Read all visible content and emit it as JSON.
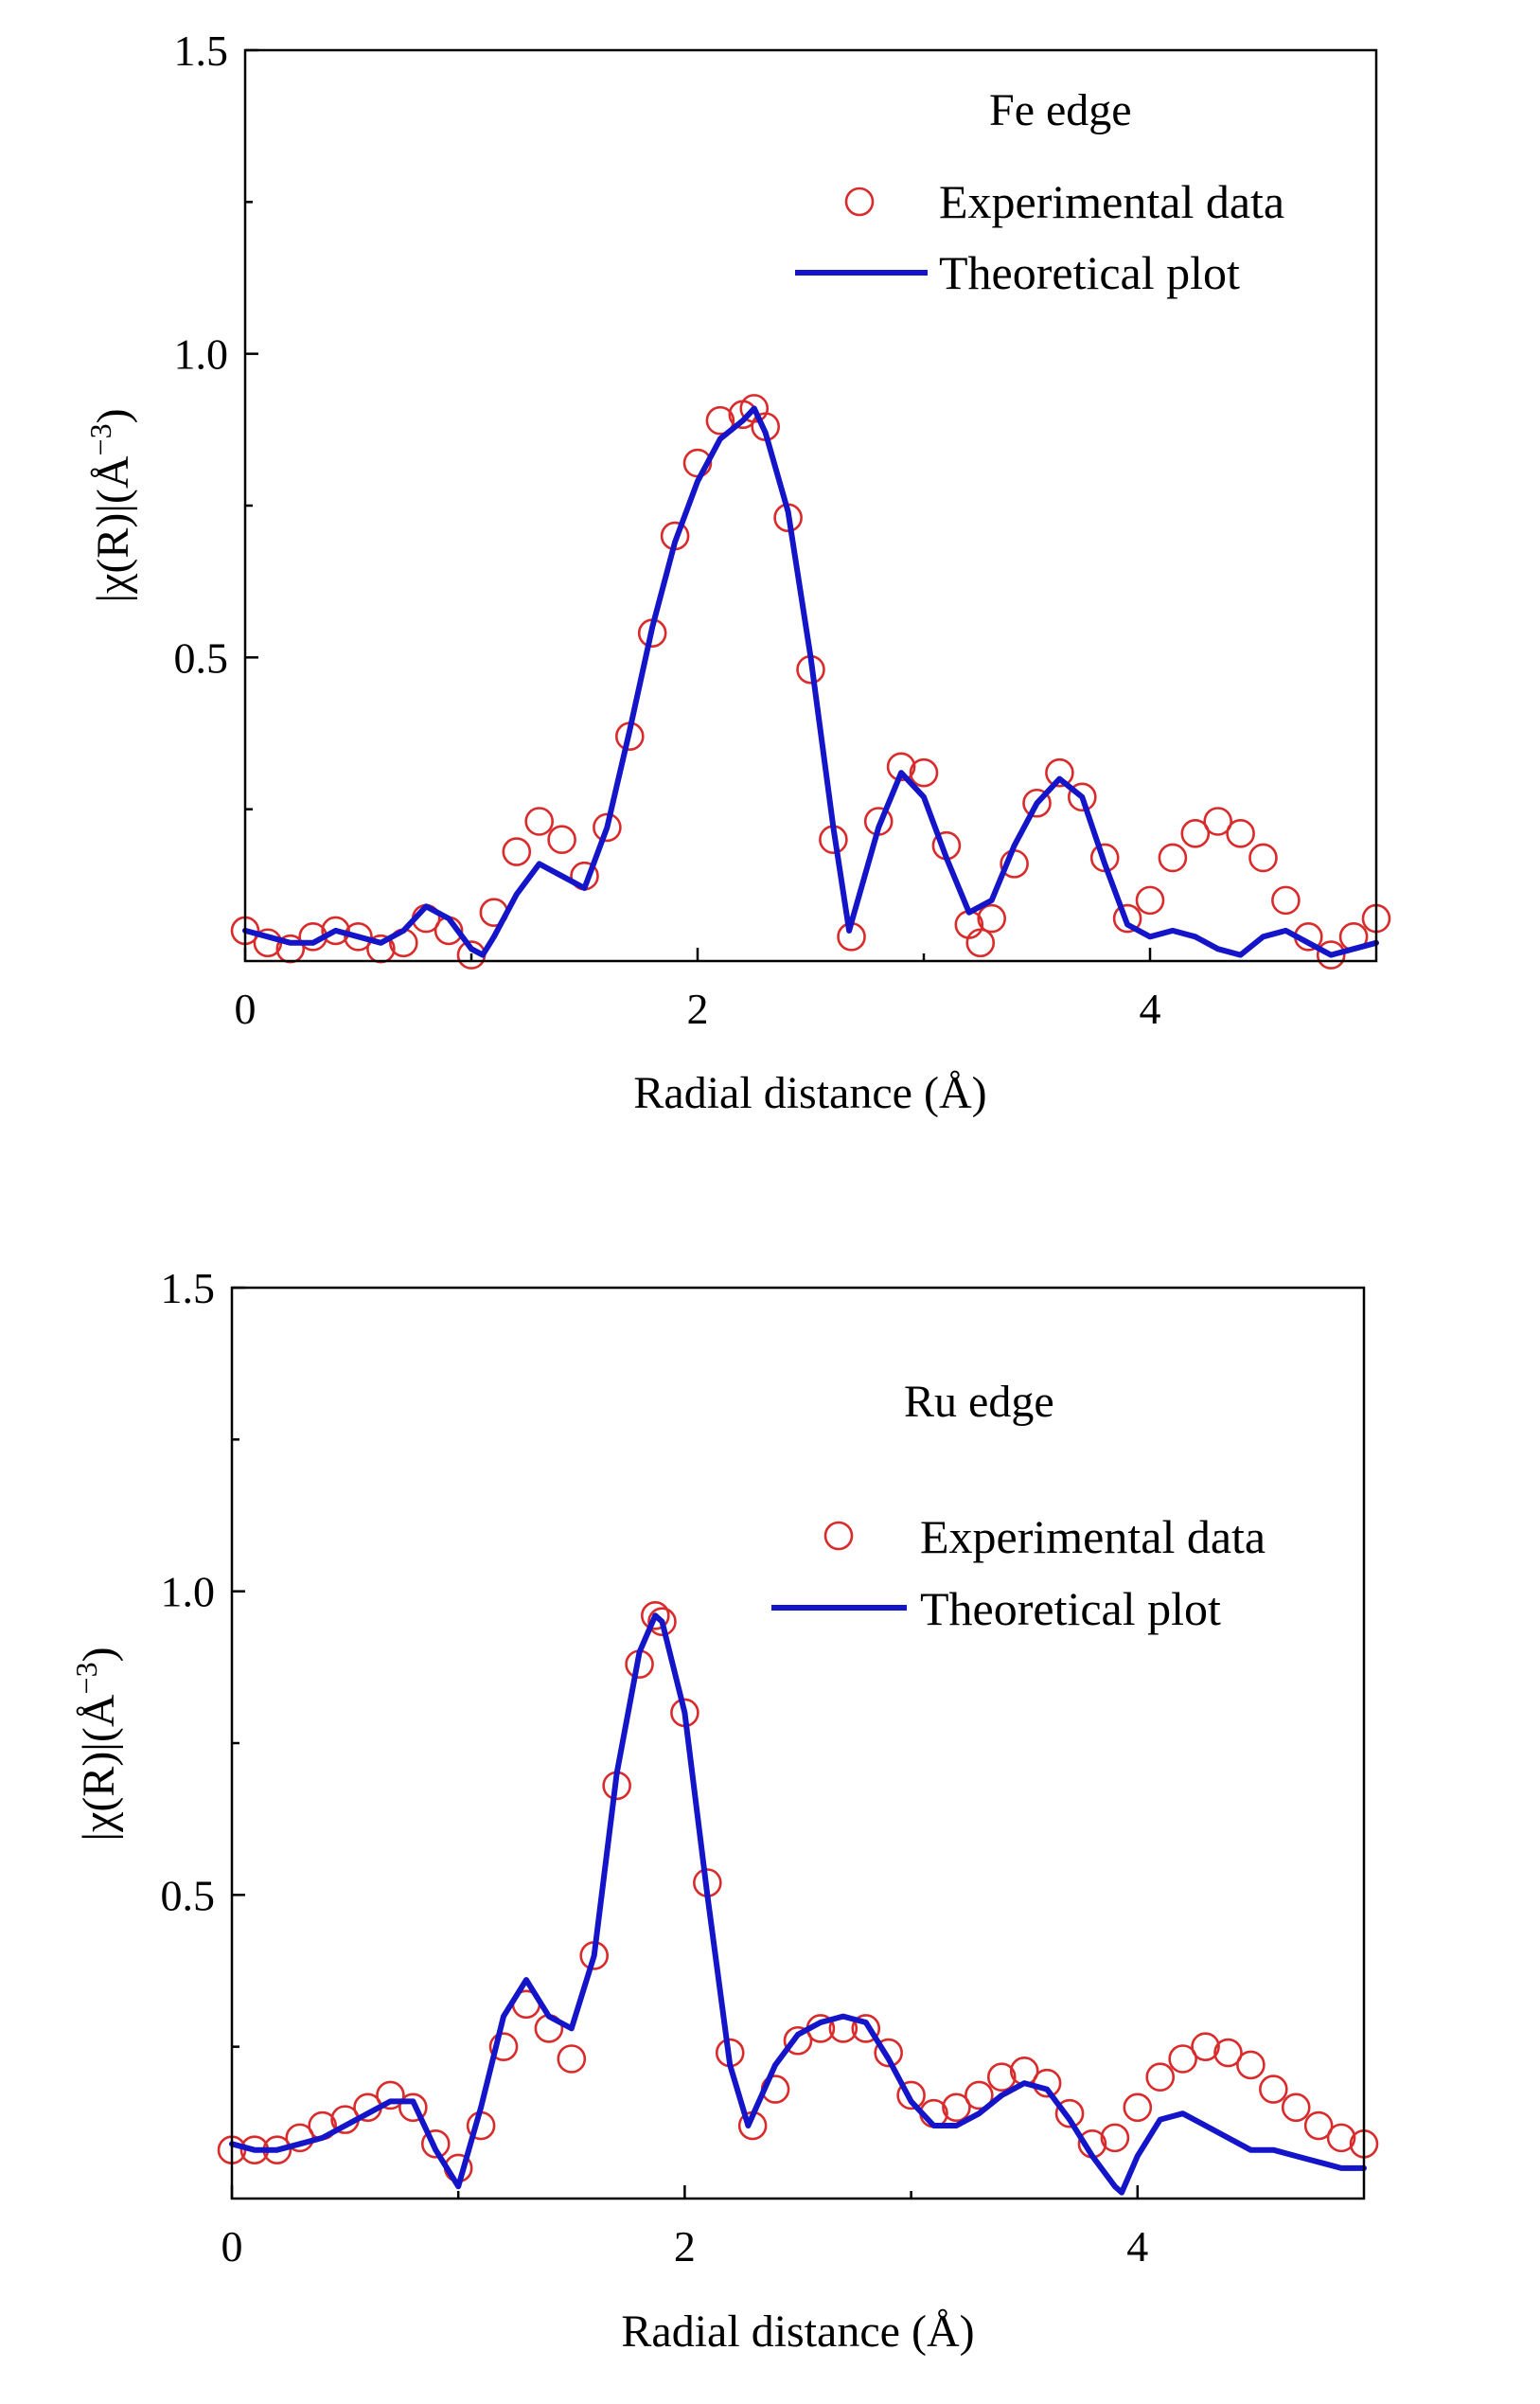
{
  "chart_data": [
    {
      "type": "line",
      "panel": "top",
      "annotation": "Fe edge",
      "xlabel": "Radial distance (Å)",
      "ylabel": "|χ(R)|(Å⁻³)",
      "ylabel_main": "|χ(R)|(Å",
      "ylabel_sup": "−3",
      "ylabel_close": ")",
      "xlim": [
        0,
        5
      ],
      "ylim": [
        0,
        1.5
      ],
      "xticks": [
        0,
        2,
        4
      ],
      "xtick_labels": [
        "0",
        "2",
        "4"
      ],
      "yticks": [
        0.5,
        1.0,
        1.5
      ],
      "ytick_labels": [
        "0.5",
        "1.0",
        "1.5"
      ],
      "legend_position": "top-right",
      "series": [
        {
          "name": "Experimental data",
          "style": "open-circle",
          "color": "#d92b2b",
          "x": [
            0.0,
            0.1,
            0.2,
            0.3,
            0.4,
            0.5,
            0.6,
            0.7,
            0.8,
            0.9,
            1.0,
            1.1,
            1.2,
            1.3,
            1.4,
            1.5,
            1.6,
            1.7,
            1.8,
            1.9,
            2.0,
            2.1,
            2.2,
            2.25,
            2.3,
            2.4,
            2.5,
            2.6,
            2.68,
            2.8,
            2.9,
            3.0,
            3.1,
            3.2,
            3.25,
            3.3,
            3.4,
            3.5,
            3.6,
            3.7,
            3.8,
            3.9,
            4.0,
            4.1,
            4.2,
            4.3,
            4.4,
            4.5,
            4.6,
            4.7,
            4.8,
            4.9,
            5.0
          ],
          "y": [
            0.05,
            0.03,
            0.02,
            0.04,
            0.05,
            0.04,
            0.02,
            0.03,
            0.07,
            0.05,
            0.01,
            0.08,
            0.18,
            0.23,
            0.2,
            0.14,
            0.22,
            0.37,
            0.54,
            0.7,
            0.82,
            0.89,
            0.9,
            0.91,
            0.88,
            0.73,
            0.48,
            0.2,
            0.04,
            0.23,
            0.32,
            0.31,
            0.19,
            0.06,
            0.03,
            0.07,
            0.16,
            0.26,
            0.31,
            0.27,
            0.17,
            0.07,
            0.1,
            0.17,
            0.21,
            0.23,
            0.21,
            0.17,
            0.1,
            0.04,
            0.01,
            0.04,
            0.07
          ]
        },
        {
          "name": "Theoretical plot",
          "style": "line",
          "color": "#1414c8",
          "x": [
            0.0,
            0.1,
            0.2,
            0.3,
            0.4,
            0.5,
            0.6,
            0.7,
            0.8,
            0.9,
            1.0,
            1.05,
            1.1,
            1.2,
            1.3,
            1.4,
            1.5,
            1.6,
            1.7,
            1.8,
            1.9,
            2.0,
            2.1,
            2.2,
            2.25,
            2.3,
            2.4,
            2.5,
            2.6,
            2.67,
            2.8,
            2.9,
            3.0,
            3.1,
            3.2,
            3.3,
            3.4,
            3.5,
            3.6,
            3.7,
            3.8,
            3.9,
            4.0,
            4.1,
            4.2,
            4.3,
            4.4,
            4.5,
            4.6,
            4.7,
            4.8,
            4.9,
            5.0
          ],
          "y": [
            0.05,
            0.04,
            0.03,
            0.03,
            0.05,
            0.04,
            0.03,
            0.05,
            0.09,
            0.07,
            0.02,
            0.01,
            0.04,
            0.11,
            0.16,
            0.14,
            0.12,
            0.22,
            0.38,
            0.55,
            0.69,
            0.79,
            0.86,
            0.89,
            0.91,
            0.87,
            0.74,
            0.5,
            0.22,
            0.05,
            0.22,
            0.31,
            0.27,
            0.17,
            0.08,
            0.1,
            0.19,
            0.26,
            0.3,
            0.27,
            0.16,
            0.06,
            0.04,
            0.05,
            0.04,
            0.02,
            0.01,
            0.04,
            0.05,
            0.03,
            0.01,
            0.02,
            0.03
          ]
        }
      ]
    },
    {
      "type": "line",
      "panel": "bottom",
      "annotation": "Ru edge",
      "xlabel": "Radial distance (Å)",
      "ylabel": "|χ(R)|(Å⁻³)",
      "ylabel_main": "|χ(R)|(Å",
      "ylabel_sup": "−3",
      "ylabel_close": ")",
      "xlim": [
        0,
        5
      ],
      "ylim": [
        0,
        1.5
      ],
      "xticks": [
        0,
        2,
        4
      ],
      "xtick_labels": [
        "0",
        "2",
        "4"
      ],
      "yticks": [
        0.5,
        1.0,
        1.5
      ],
      "ytick_labels": [
        "0.5",
        "1.0",
        "1.5"
      ],
      "legend_position": "top-right",
      "series": [
        {
          "name": "Experimental data",
          "style": "open-circle",
          "color": "#d92b2b",
          "x": [
            0.0,
            0.1,
            0.2,
            0.3,
            0.4,
            0.5,
            0.6,
            0.7,
            0.8,
            0.9,
            1.0,
            1.1,
            1.2,
            1.3,
            1.4,
            1.5,
            1.6,
            1.7,
            1.8,
            1.87,
            1.9,
            2.0,
            2.1,
            2.2,
            2.3,
            2.4,
            2.5,
            2.6,
            2.7,
            2.8,
            2.9,
            3.0,
            3.1,
            3.2,
            3.3,
            3.4,
            3.5,
            3.6,
            3.7,
            3.8,
            3.9,
            4.0,
            4.1,
            4.2,
            4.3,
            4.4,
            4.5,
            4.6,
            4.7,
            4.8,
            4.9,
            5.0
          ],
          "y": [
            0.08,
            0.08,
            0.08,
            0.1,
            0.12,
            0.13,
            0.15,
            0.17,
            0.15,
            0.09,
            0.05,
            0.12,
            0.25,
            0.32,
            0.28,
            0.23,
            0.4,
            0.68,
            0.88,
            0.96,
            0.95,
            0.8,
            0.52,
            0.24,
            0.12,
            0.18,
            0.26,
            0.28,
            0.28,
            0.28,
            0.24,
            0.17,
            0.14,
            0.15,
            0.17,
            0.2,
            0.21,
            0.19,
            0.14,
            0.09,
            0.1,
            0.15,
            0.2,
            0.23,
            0.25,
            0.24,
            0.22,
            0.18,
            0.15,
            0.12,
            0.1,
            0.09
          ]
        },
        {
          "name": "Theoretical plot",
          "style": "line",
          "color": "#1414c8",
          "x": [
            0.0,
            0.1,
            0.2,
            0.3,
            0.4,
            0.5,
            0.6,
            0.7,
            0.8,
            0.9,
            1.0,
            1.1,
            1.2,
            1.3,
            1.4,
            1.5,
            1.6,
            1.7,
            1.8,
            1.87,
            1.9,
            2.0,
            2.1,
            2.2,
            2.28,
            2.4,
            2.5,
            2.6,
            2.7,
            2.8,
            2.9,
            3.0,
            3.1,
            3.2,
            3.3,
            3.4,
            3.5,
            3.6,
            3.7,
            3.8,
            3.9,
            3.93,
            4.0,
            4.1,
            4.2,
            4.3,
            4.4,
            4.5,
            4.6,
            4.7,
            4.8,
            4.9,
            5.0
          ],
          "y": [
            0.09,
            0.08,
            0.08,
            0.09,
            0.1,
            0.12,
            0.14,
            0.16,
            0.16,
            0.08,
            0.02,
            0.15,
            0.3,
            0.36,
            0.3,
            0.28,
            0.4,
            0.7,
            0.9,
            0.96,
            0.95,
            0.8,
            0.5,
            0.22,
            0.12,
            0.22,
            0.27,
            0.29,
            0.3,
            0.29,
            0.23,
            0.16,
            0.12,
            0.12,
            0.14,
            0.17,
            0.19,
            0.18,
            0.13,
            0.07,
            0.02,
            0.01,
            0.07,
            0.13,
            0.14,
            0.12,
            0.1,
            0.08,
            0.08,
            0.07,
            0.06,
            0.05,
            0.05
          ]
        }
      ]
    }
  ]
}
